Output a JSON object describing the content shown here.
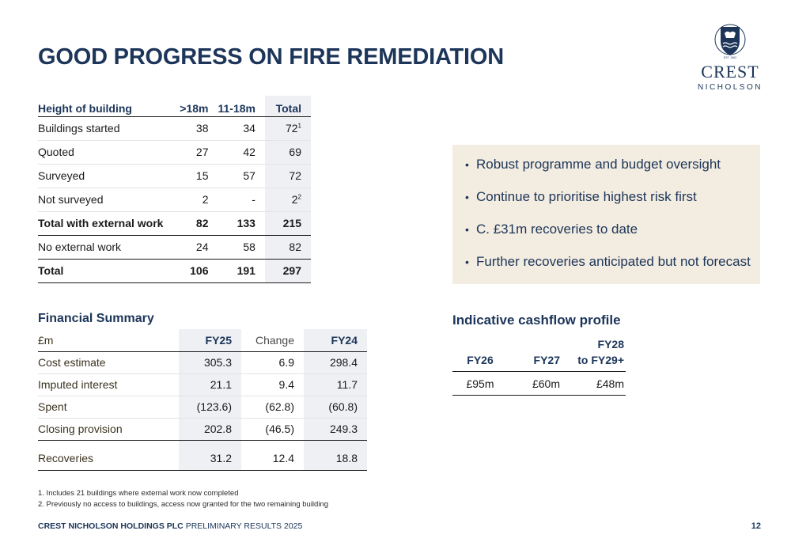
{
  "title": "GOOD PROGRESS ON FIRE REMEDIATION",
  "logo": {
    "est": "EST. 1963",
    "name_line1": "CREST",
    "name_line2": "NICHOLSON"
  },
  "buildings": {
    "headers": [
      "Height of building",
      ">18m",
      "11-18m",
      "Total"
    ],
    "rows": [
      {
        "label": "Buildings started",
        "a": "38",
        "b": "34",
        "total": "72",
        "sup": "1"
      },
      {
        "label": "Quoted",
        "a": "27",
        "b": "42",
        "total": "69",
        "sup": ""
      },
      {
        "label": "Surveyed",
        "a": "15",
        "b": "57",
        "total": "72",
        "sup": ""
      },
      {
        "label": "Not surveyed",
        "a": "2",
        "b": "-",
        "total": "2",
        "sup": "2"
      },
      {
        "label": "Total with external work",
        "a": "82",
        "b": "133",
        "total": "215",
        "sup": ""
      },
      {
        "label": "No external work",
        "a": "24",
        "b": "58",
        "total": "82",
        "sup": ""
      },
      {
        "label": "Total",
        "a": "106",
        "b": "191",
        "total": "297",
        "sup": ""
      }
    ]
  },
  "bullets": [
    "Robust programme and budget oversight",
    "Continue to prioritise highest risk first",
    "C. £31m recoveries to date",
    "Further recoveries anticipated but not forecast"
  ],
  "financial": {
    "heading": "Financial Summary",
    "headers": [
      "£m",
      "FY25",
      "Change",
      "FY24"
    ],
    "rows": [
      {
        "label": "Cost estimate",
        "fy25": "305.3",
        "change": "6.9",
        "fy24": "298.4"
      },
      {
        "label": "Imputed interest",
        "fy25": "21.1",
        "change": "9.4",
        "fy24": "11.7"
      },
      {
        "label": "Spent",
        "fy25": "(123.6)",
        "change": "(62.8)",
        "fy24": "(60.8)"
      },
      {
        "label": "Closing provision",
        "fy25": "202.8",
        "change": "(46.5)",
        "fy24": "249.3"
      },
      {
        "label": "Recoveries",
        "fy25": "31.2",
        "change": "12.4",
        "fy24": "18.8"
      }
    ]
  },
  "cashflow": {
    "heading": "Indicative cashflow profile",
    "headers": [
      "FY26",
      "FY27",
      "FY28",
      "to FY29+"
    ],
    "values": [
      "£95m",
      "£60m",
      "£48m"
    ]
  },
  "footnotes": [
    "1.  Includes 21 buildings where external work now completed",
    "2.  Previously no access to buildings, access now granted for the two remaining building"
  ],
  "footer": {
    "company": "CREST NICHOLSON HOLDINGS PLC",
    "doc": "PRELIMINARY RESULTS 2025",
    "page": "12"
  },
  "colors": {
    "navy": "#1c3559",
    "beige": "#f3ece0",
    "shade": "#eef0f4"
  }
}
